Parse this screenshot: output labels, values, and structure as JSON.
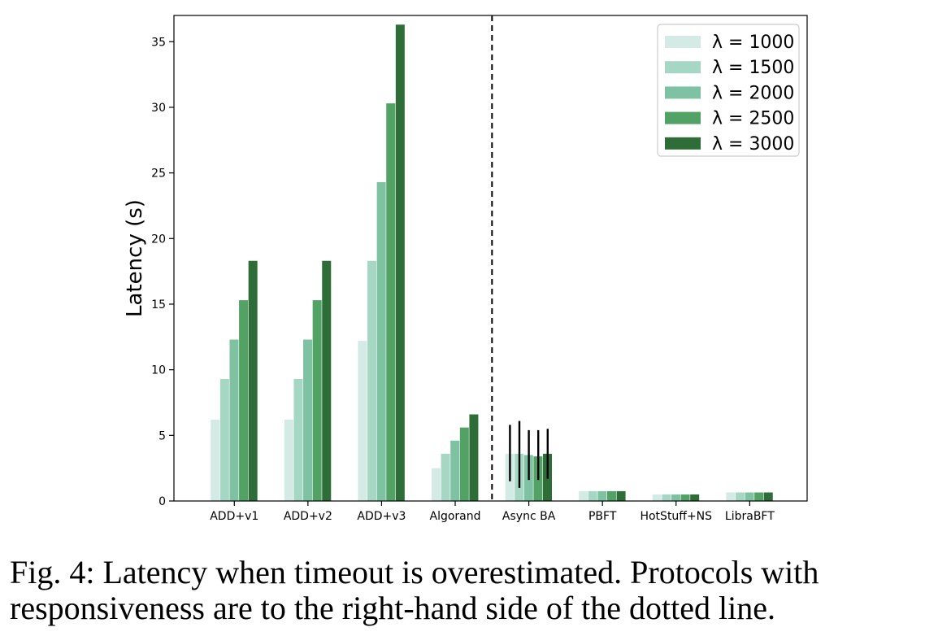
{
  "chart_data": {
    "type": "bar",
    "ylabel": "Latency (s)",
    "xlabel": "",
    "ylim": [
      0,
      37
    ],
    "yticks": [
      0,
      5,
      10,
      15,
      20,
      25,
      30,
      35
    ],
    "categories": [
      "ADD+v1",
      "ADD+v2",
      "ADD+v3",
      "Algorand",
      "Async BA",
      "PBFT",
      "HotStuff+NS",
      "LibraBFT"
    ],
    "series": [
      {
        "name": "λ = 1000",
        "color": "#d3ebe4",
        "values": [
          6.2,
          6.2,
          12.2,
          2.5,
          3.6,
          0.75,
          0.5,
          0.65
        ]
      },
      {
        "name": "λ = 1500",
        "color": "#a6d6c4",
        "values": [
          9.3,
          9.3,
          18.3,
          3.6,
          3.6,
          0.75,
          0.5,
          0.65
        ]
      },
      {
        "name": "λ = 2000",
        "color": "#7fc1a3",
        "values": [
          12.3,
          12.3,
          24.3,
          4.6,
          3.5,
          0.75,
          0.5,
          0.65
        ]
      },
      {
        "name": "λ = 2500",
        "color": "#52a266",
        "values": [
          15.3,
          15.3,
          30.3,
          5.6,
          3.4,
          0.75,
          0.5,
          0.65
        ]
      },
      {
        "name": "λ = 3000",
        "color": "#2f6d38",
        "values": [
          18.3,
          18.3,
          36.3,
          6.6,
          3.6,
          0.75,
          0.5,
          0.65
        ]
      }
    ],
    "error_bars": {
      "category": "Async BA",
      "low": [
        1.5,
        1.0,
        1.6,
        1.6,
        1.7
      ],
      "high": [
        5.8,
        6.1,
        5.4,
        5.4,
        5.5
      ]
    },
    "divider": {
      "style": "dashed",
      "between": [
        "Algorand",
        "Async BA"
      ]
    },
    "legend_position": "top-right",
    "grid": false
  },
  "caption": "Fig. 4: Latency when timeout is overestimated. Protocols with responsiveness are to the right-hand side of the dotted line."
}
